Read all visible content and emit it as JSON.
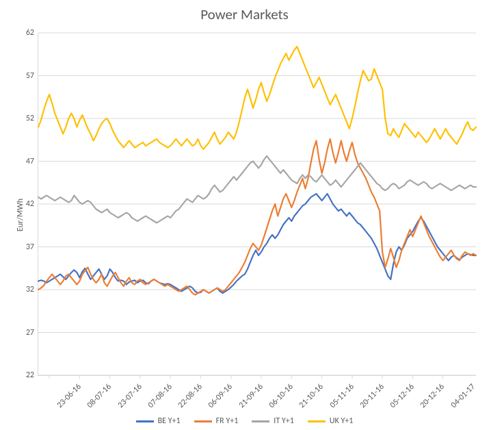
{
  "chart": {
    "type": "line",
    "title": "Power Markets",
    "title_fontsize": 21,
    "ylabel": "Eur/MWh",
    "label_fontsize": 12,
    "background_color": "#ffffff",
    "grid_color": "#d9d9d9",
    "axis_color": "#d9d9d9",
    "tick_color": "#595959",
    "line_width": 2.2,
    "ylim": [
      22,
      62
    ],
    "ytick_step": 5,
    "yticks": [
      22,
      27,
      32,
      37,
      42,
      47,
      52,
      57,
      62
    ],
    "x_count": 160,
    "xticks": [
      {
        "i": 4,
        "label": "23-06-16"
      },
      {
        "i": 15,
        "label": "08-07-16"
      },
      {
        "i": 26,
        "label": "23-07-16"
      },
      {
        "i": 37,
        "label": "07-08-16"
      },
      {
        "i": 48,
        "label": "22-08-16"
      },
      {
        "i": 59,
        "label": "06-09-16"
      },
      {
        "i": 70,
        "label": "21-09-16"
      },
      {
        "i": 81,
        "label": "06-10-16"
      },
      {
        "i": 92,
        "label": "21-10-16"
      },
      {
        "i": 103,
        "label": "05-11-16"
      },
      {
        "i": 114,
        "label": "20-11-16"
      },
      {
        "i": 125,
        "label": "05-12-16"
      },
      {
        "i": 136,
        "label": "20-12-16"
      },
      {
        "i": 147,
        "label": "04-01-17"
      }
    ],
    "series": [
      {
        "name": "BE Y+1",
        "color": "#4472c4",
        "values": [
          33.0,
          33.1,
          33.0,
          32.8,
          33.0,
          33.2,
          33.4,
          33.6,
          33.8,
          33.5,
          33.2,
          33.6,
          34.0,
          34.3,
          34.0,
          33.4,
          34.1,
          34.5,
          33.8,
          33.2,
          33.6,
          34.0,
          34.4,
          33.8,
          33.2,
          33.6,
          34.4,
          34.0,
          33.4,
          33.0,
          33.1,
          33.0,
          32.6,
          32.9,
          33.0,
          33.1,
          32.8,
          33.0,
          33.1,
          32.8,
          32.7,
          33.0,
          33.2,
          33.0,
          32.8,
          32.7,
          32.6,
          32.7,
          32.6,
          32.4,
          32.2,
          32.0,
          31.8,
          32.0,
          32.2,
          32.4,
          32.2,
          31.8,
          31.6,
          31.7,
          32.0,
          31.8,
          31.6,
          31.8,
          32.0,
          32.2,
          31.8,
          31.6,
          31.8,
          32.0,
          32.3,
          32.6,
          33.0,
          33.3,
          33.6,
          33.8,
          34.4,
          35.2,
          36.0,
          36.6,
          36.0,
          36.4,
          37.0,
          37.4,
          38.0,
          38.4,
          38.0,
          38.4,
          39.0,
          39.6,
          40.0,
          40.4,
          40.0,
          40.6,
          41.0,
          41.4,
          41.8,
          42.0,
          42.4,
          42.8,
          43.0,
          43.2,
          42.8,
          42.4,
          42.8,
          43.2,
          42.6,
          42.0,
          41.6,
          41.2,
          41.4,
          41.0,
          40.6,
          41.0,
          40.6,
          40.2,
          39.8,
          39.6,
          39.2,
          38.8,
          38.4,
          38.0,
          37.4,
          36.8,
          36.0,
          35.2,
          34.4,
          33.6,
          33.2,
          35.0,
          36.4,
          37.0,
          36.6,
          37.2,
          38.0,
          38.4,
          38.8,
          39.4,
          40.0,
          40.4,
          40.0,
          39.4,
          38.8,
          38.2,
          37.6,
          37.0,
          36.6,
          36.2,
          35.8,
          35.4,
          35.8,
          36.0,
          35.7,
          35.5,
          35.8,
          36.0,
          36.2,
          36.1,
          36.0,
          36.0
        ]
      },
      {
        "name": "FR Y+1",
        "color": "#ed7d31",
        "values": [
          32.0,
          32.2,
          32.5,
          33.0,
          33.4,
          33.8,
          33.4,
          33.0,
          32.6,
          33.0,
          33.6,
          33.8,
          33.4,
          33.0,
          32.6,
          33.0,
          33.8,
          34.2,
          34.6,
          33.8,
          33.2,
          32.8,
          33.2,
          33.8,
          32.8,
          32.4,
          33.0,
          33.6,
          34.0,
          33.4,
          32.8,
          32.4,
          33.0,
          33.4,
          32.8,
          32.6,
          33.0,
          33.2,
          32.8,
          32.6,
          32.8,
          33.0,
          33.2,
          33.0,
          32.8,
          32.6,
          32.4,
          32.6,
          32.4,
          32.2,
          32.0,
          31.8,
          32.0,
          32.2,
          32.4,
          32.0,
          31.6,
          31.4,
          31.6,
          31.8,
          32.0,
          31.8,
          31.6,
          31.8,
          32.0,
          32.2,
          32.0,
          31.8,
          32.0,
          32.4,
          32.8,
          33.2,
          33.6,
          34.0,
          34.6,
          35.2,
          36.0,
          36.8,
          37.4,
          37.0,
          36.6,
          37.2,
          38.2,
          39.2,
          40.2,
          41.2,
          42.0,
          40.6,
          41.6,
          42.6,
          43.2,
          42.4,
          41.6,
          42.4,
          43.4,
          44.2,
          45.0,
          43.8,
          45.0,
          46.8,
          48.4,
          49.4,
          47.2,
          45.6,
          46.8,
          48.4,
          49.6,
          48.0,
          46.8,
          48.0,
          49.4,
          48.0,
          47.0,
          48.2,
          49.2,
          47.8,
          46.8,
          46.2,
          45.6,
          45.0,
          44.2,
          43.4,
          42.8,
          42.0,
          41.2,
          36.4,
          34.6,
          35.6,
          36.8,
          35.8,
          34.6,
          35.4,
          36.6,
          37.4,
          38.2,
          39.0,
          38.2,
          39.0,
          39.8,
          40.6,
          39.8,
          39.0,
          38.2,
          37.6,
          37.0,
          36.4,
          35.8,
          35.4,
          35.8,
          36.2,
          36.6,
          36.0,
          35.6,
          35.4,
          36.0,
          36.4,
          36.2,
          36.0,
          36.2,
          36.0
        ]
      },
      {
        "name": "IT Y+1",
        "color": "#a5a5a5",
        "values": [
          42.8,
          42.6,
          42.8,
          43.0,
          42.8,
          42.6,
          42.4,
          42.6,
          42.8,
          42.6,
          42.4,
          42.2,
          42.4,
          43.0,
          42.6,
          42.2,
          42.0,
          42.2,
          42.4,
          42.2,
          41.8,
          41.4,
          41.2,
          41.0,
          41.2,
          41.4,
          41.0,
          40.8,
          40.6,
          40.4,
          40.6,
          40.8,
          41.0,
          40.8,
          40.4,
          40.2,
          40.0,
          40.2,
          40.4,
          40.6,
          40.4,
          40.2,
          40.0,
          39.8,
          40.0,
          40.2,
          40.4,
          40.6,
          40.4,
          40.8,
          41.2,
          41.4,
          41.8,
          42.2,
          42.6,
          42.4,
          42.2,
          42.6,
          43.0,
          42.8,
          42.6,
          42.8,
          43.2,
          43.8,
          44.2,
          43.8,
          43.4,
          43.6,
          44.0,
          44.4,
          44.8,
          45.2,
          44.8,
          45.2,
          45.6,
          46.0,
          46.4,
          46.8,
          47.0,
          46.6,
          46.2,
          46.6,
          47.2,
          47.6,
          47.2,
          46.8,
          46.4,
          46.0,
          45.6,
          46.0,
          45.6,
          45.2,
          44.8,
          44.6,
          44.4,
          45.0,
          45.4,
          45.0,
          45.4,
          45.2,
          44.8,
          44.6,
          45.0,
          45.4,
          45.0,
          44.6,
          44.2,
          44.4,
          44.8,
          44.4,
          44.0,
          44.4,
          44.8,
          45.2,
          45.6,
          46.0,
          46.4,
          46.8,
          46.4,
          46.0,
          45.6,
          45.2,
          44.8,
          44.4,
          44.2,
          43.8,
          43.6,
          43.8,
          44.2,
          44.4,
          44.2,
          43.8,
          44.0,
          44.2,
          44.6,
          44.8,
          44.6,
          44.4,
          44.2,
          44.4,
          44.6,
          44.4,
          44.0,
          43.8,
          44.0,
          44.2,
          44.4,
          44.2,
          44.0,
          43.8,
          43.6,
          43.8,
          44.0,
          44.2,
          44.0,
          43.8,
          44.0,
          44.2,
          44.0,
          44.0
        ]
      },
      {
        "name": "UK Y+1",
        "color": "#ffc000",
        "values": [
          51.0,
          51.8,
          53.0,
          54.0,
          54.8,
          53.8,
          52.6,
          51.8,
          51.0,
          50.2,
          51.0,
          52.0,
          52.6,
          52.0,
          51.0,
          51.8,
          52.4,
          51.6,
          50.8,
          50.2,
          49.4,
          50.0,
          50.8,
          51.4,
          51.8,
          52.0,
          51.4,
          50.6,
          50.0,
          49.4,
          49.0,
          48.6,
          49.0,
          49.4,
          49.0,
          48.6,
          48.8,
          49.0,
          49.2,
          48.8,
          49.0,
          49.2,
          49.4,
          49.6,
          49.2,
          49.0,
          48.8,
          48.6,
          48.8,
          49.2,
          49.6,
          49.2,
          48.8,
          49.2,
          49.6,
          49.2,
          48.8,
          49.0,
          49.6,
          48.8,
          48.4,
          48.8,
          49.2,
          49.8,
          50.4,
          49.6,
          49.0,
          49.4,
          49.8,
          50.4,
          50.0,
          49.6,
          50.4,
          51.6,
          53.0,
          54.4,
          55.4,
          54.4,
          53.2,
          54.2,
          55.4,
          56.2,
          55.0,
          54.0,
          54.8,
          55.8,
          56.8,
          57.6,
          58.4,
          59.0,
          59.6,
          58.8,
          59.4,
          60.0,
          60.4,
          59.6,
          58.8,
          58.0,
          57.2,
          56.4,
          55.6,
          56.2,
          56.8,
          56.0,
          55.2,
          54.4,
          53.6,
          54.2,
          54.8,
          54.0,
          53.2,
          52.4,
          51.6,
          50.8,
          52.0,
          53.4,
          55.0,
          56.4,
          57.6,
          57.0,
          56.4,
          56.6,
          57.8,
          57.0,
          56.2,
          55.4,
          52.0,
          50.2,
          50.0,
          50.8,
          50.2,
          49.8,
          50.6,
          51.4,
          51.0,
          50.6,
          50.2,
          49.8,
          50.4,
          50.0,
          49.6,
          49.2,
          49.6,
          50.2,
          50.8,
          50.2,
          49.6,
          50.2,
          50.8,
          50.2,
          49.8,
          49.4,
          49.0,
          49.6,
          50.2,
          51.0,
          51.6,
          50.8,
          50.6,
          51.0
        ]
      }
    ],
    "legend_position": "bottom"
  }
}
